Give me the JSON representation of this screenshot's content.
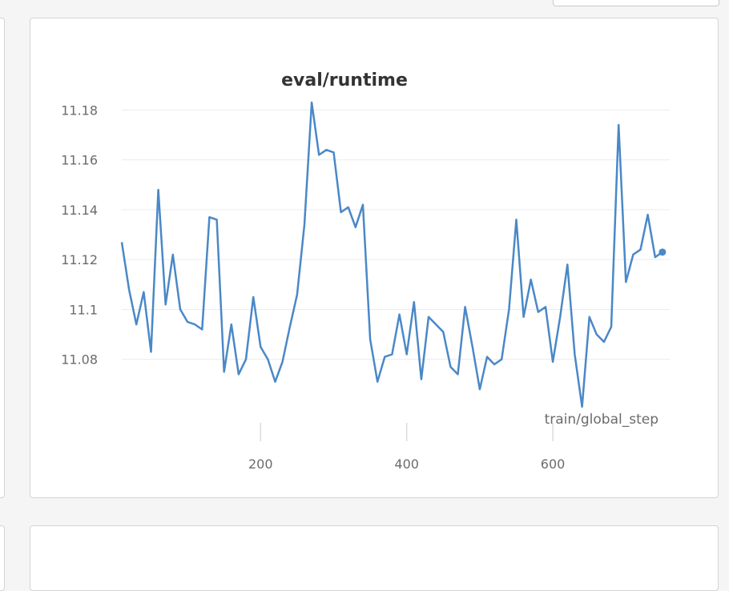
{
  "chart_data": {
    "type": "line",
    "title": "eval/runtime",
    "xlabel": "train/global_step",
    "ylabel": "",
    "xlim": [
      10,
      760
    ],
    "ylim": [
      11.06,
      11.183
    ],
    "xticks": [
      200,
      400,
      600
    ],
    "yticks": [
      11.08,
      11.1,
      11.12,
      11.14,
      11.16,
      11.18
    ],
    "ytick_labels": [
      "11.08",
      "11.1",
      "11.12",
      "11.14",
      "11.16",
      "11.18"
    ],
    "grid": true,
    "color": "#4a88c7",
    "series": [
      {
        "x": [
          10,
          20,
          30,
          40,
          50,
          60,
          70,
          80,
          90,
          100,
          110,
          120,
          130,
          140,
          150,
          160,
          170,
          180,
          190,
          200,
          210,
          220,
          230,
          240,
          250,
          260,
          270,
          280,
          290,
          300,
          310,
          320,
          330,
          340,
          350,
          360,
          370,
          380,
          390,
          400,
          410,
          420,
          430,
          440,
          450,
          460,
          470,
          480,
          490,
          500,
          510,
          520,
          530,
          540,
          550,
          560,
          570,
          580,
          590,
          600,
          610,
          620,
          630,
          640,
          650,
          660,
          670,
          680,
          690,
          700,
          710,
          720,
          730,
          740,
          750
        ],
        "y": [
          11.127,
          11.108,
          11.094,
          11.107,
          11.083,
          11.148,
          11.102,
          11.122,
          11.1,
          11.095,
          11.094,
          11.092,
          11.137,
          11.136,
          11.075,
          11.094,
          11.074,
          11.08,
          11.105,
          11.085,
          11.08,
          11.071,
          11.079,
          11.093,
          11.106,
          11.134,
          11.183,
          11.162,
          11.164,
          11.163,
          11.139,
          11.141,
          11.133,
          11.142,
          11.088,
          11.071,
          11.081,
          11.082,
          11.098,
          11.082,
          11.103,
          11.072,
          11.097,
          11.094,
          11.091,
          11.077,
          11.074,
          11.101,
          11.085,
          11.068,
          11.081,
          11.078,
          11.08,
          11.1,
          11.136,
          11.097,
          11.112,
          11.099,
          11.101,
          11.079,
          11.097,
          11.118,
          11.082,
          11.061,
          11.097,
          11.09,
          11.087,
          11.093,
          11.174,
          11.111,
          11.122,
          11.124,
          11.138,
          11.121,
          11.123
        ]
      }
    ]
  }
}
